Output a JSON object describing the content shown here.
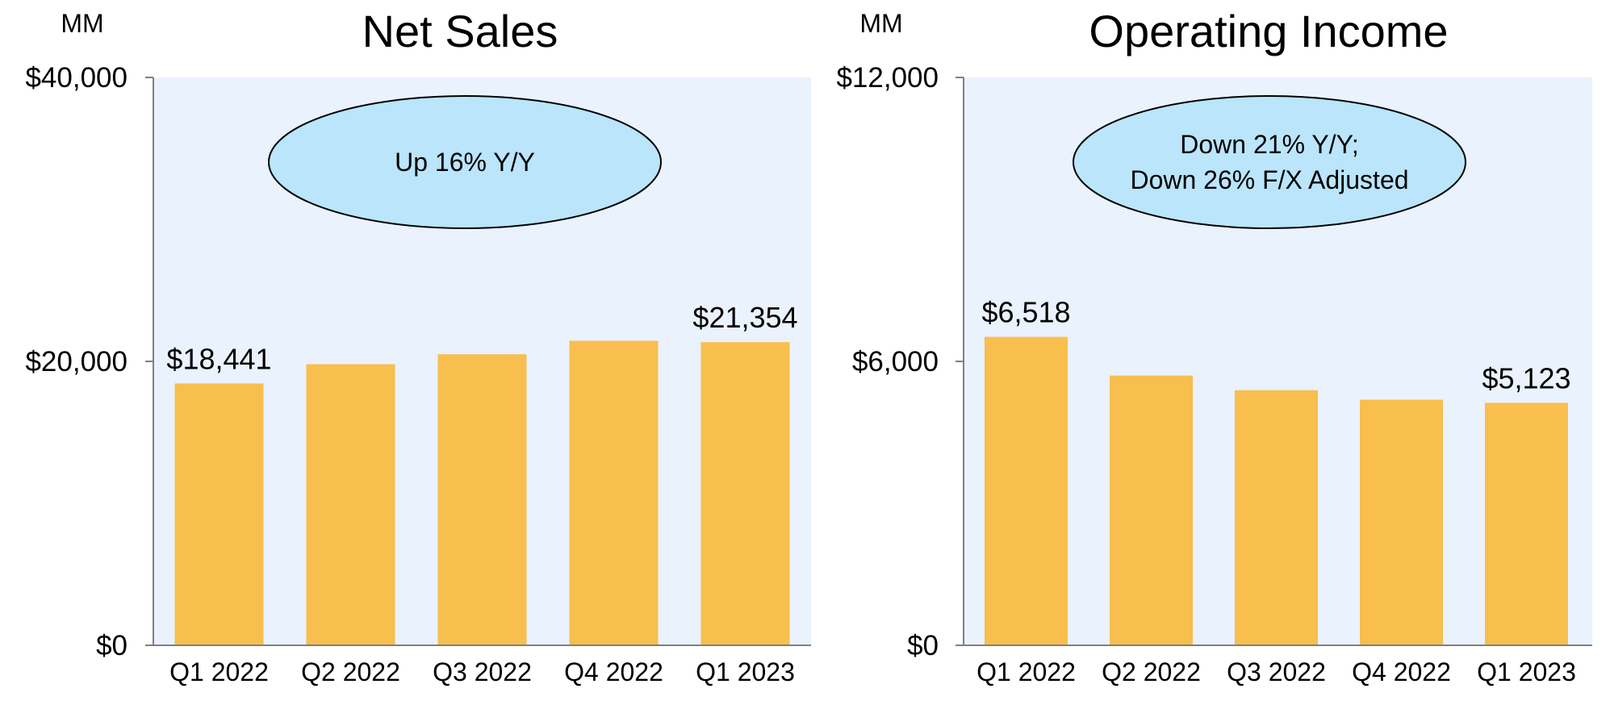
{
  "chart_data": [
    {
      "type": "bar",
      "title": "Net Sales",
      "unit_label": "MM",
      "categories": [
        "Q1 2022",
        "Q2 2022",
        "Q3 2022",
        "Q4 2022",
        "Q1 2023"
      ],
      "values": [
        18441,
        19800,
        20500,
        21450,
        21354
      ],
      "data_labels": [
        {
          "category": "Q1 2022",
          "text": "$18,441"
        },
        {
          "category": "Q1 2023",
          "text": "$21,354"
        }
      ],
      "ylim": [
        0,
        40000
      ],
      "y_ticks": [
        0,
        20000,
        40000
      ],
      "y_tick_labels": [
        "$0",
        "$20,000",
        "$40,000"
      ],
      "callout": [
        "Up 16% Y/Y"
      ],
      "xlabel": "",
      "ylabel": ""
    },
    {
      "type": "bar",
      "title": "Operating Income",
      "unit_label": "MM",
      "categories": [
        "Q1 2022",
        "Q2 2022",
        "Q3 2022",
        "Q4 2022",
        "Q1 2023"
      ],
      "values": [
        6518,
        5700,
        5390,
        5190,
        5123
      ],
      "data_labels": [
        {
          "category": "Q1 2022",
          "text": "$6,518"
        },
        {
          "category": "Q1 2023",
          "text": "$5,123"
        }
      ],
      "ylim": [
        0,
        12000
      ],
      "y_ticks": [
        0,
        6000,
        12000
      ],
      "y_tick_labels": [
        "$0",
        "$6,000",
        "$12,000"
      ],
      "callout": [
        "Down 21% Y/Y;",
        "Down 26% F/X Adjusted"
      ],
      "xlabel": "",
      "ylabel": ""
    }
  ],
  "colors": {
    "bar": "#F8BE4E",
    "plot_bg": "#EAF2FD",
    "callout_fill": "#BAE5FA",
    "axis": "#808080",
    "text": "#000000"
  }
}
